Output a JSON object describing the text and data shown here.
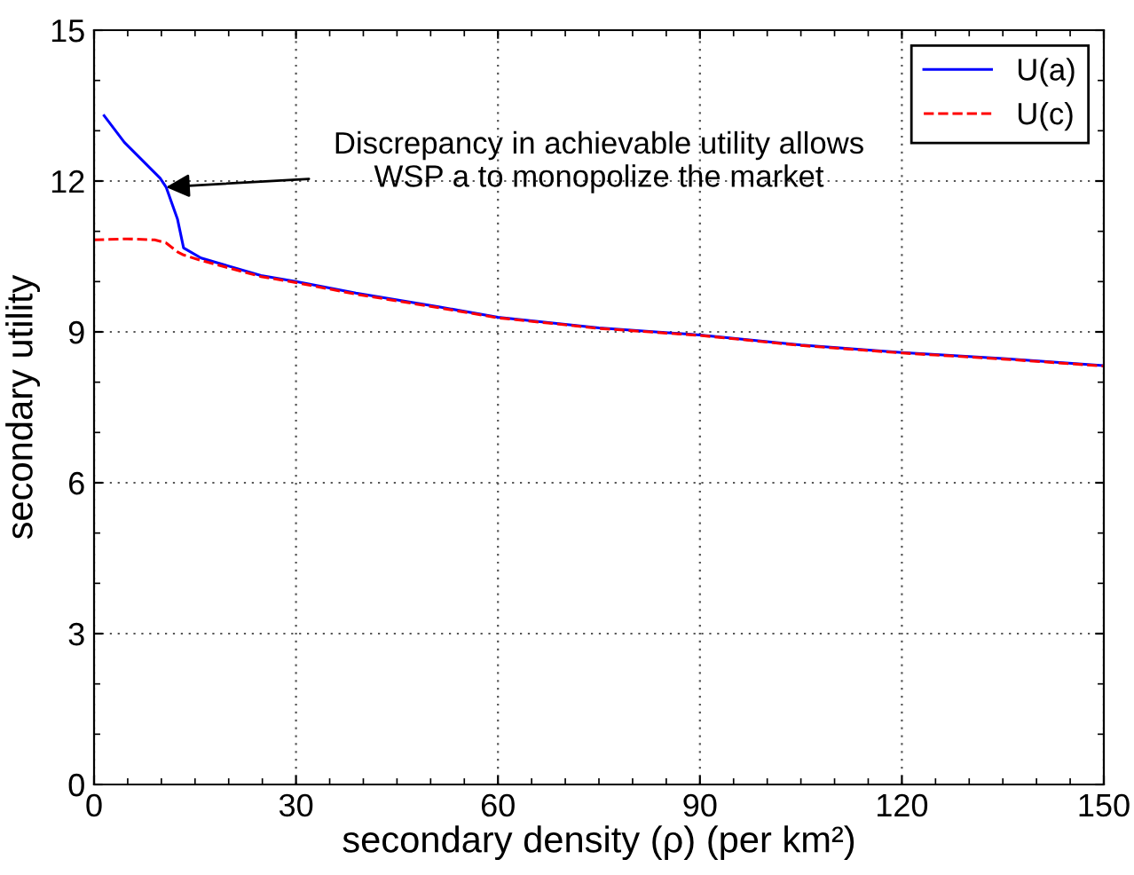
{
  "chart_data": {
    "type": "line",
    "xlabel": "secondary density (ρ) (per km²)",
    "ylabel": "secondary utility",
    "xlim": [
      0,
      150
    ],
    "xticks": [
      0,
      30,
      60,
      90,
      120,
      150
    ],
    "ylim": [
      0,
      15
    ],
    "yticks": [
      0,
      3,
      6,
      9,
      12,
      15
    ],
    "grid": true,
    "legend": "top right",
    "series": [
      {
        "name": "U(a)",
        "color": "#0000ff",
        "line_style": "solid",
        "x": [
          1.5,
          4.5,
          9.8,
          10.7,
          12.4,
          13.3,
          15.9,
          24.8,
          30,
          38.9,
          51.2,
          60,
          75,
          90,
          105,
          120,
          135,
          150
        ],
        "values": [
          13.3,
          12.77,
          12.06,
          11.88,
          11.24,
          10.67,
          10.47,
          10.12,
          10.0,
          9.77,
          9.5,
          9.29,
          9.08,
          8.94,
          8.74,
          8.59,
          8.47,
          8.33
        ]
      },
      {
        "name": "U(c)",
        "color": "#ff0000",
        "line_style": "dashed",
        "x": [
          0,
          5,
          9,
          10.7,
          12.4,
          13.3,
          15.9,
          24.8,
          30,
          38.9,
          51.2,
          60,
          75,
          90,
          105,
          120,
          135,
          150
        ],
        "values": [
          10.83,
          10.85,
          10.83,
          10.77,
          10.59,
          10.53,
          10.42,
          10.1,
          9.98,
          9.75,
          9.48,
          9.28,
          9.07,
          8.93,
          8.73,
          8.58,
          8.46,
          8.32
        ]
      }
    ],
    "annotations": [
      {
        "text": "Discrepancy in achievable utility allows\nWSP a to monopolize the market",
        "x": 10.7,
        "y": 11.88
      }
    ]
  }
}
